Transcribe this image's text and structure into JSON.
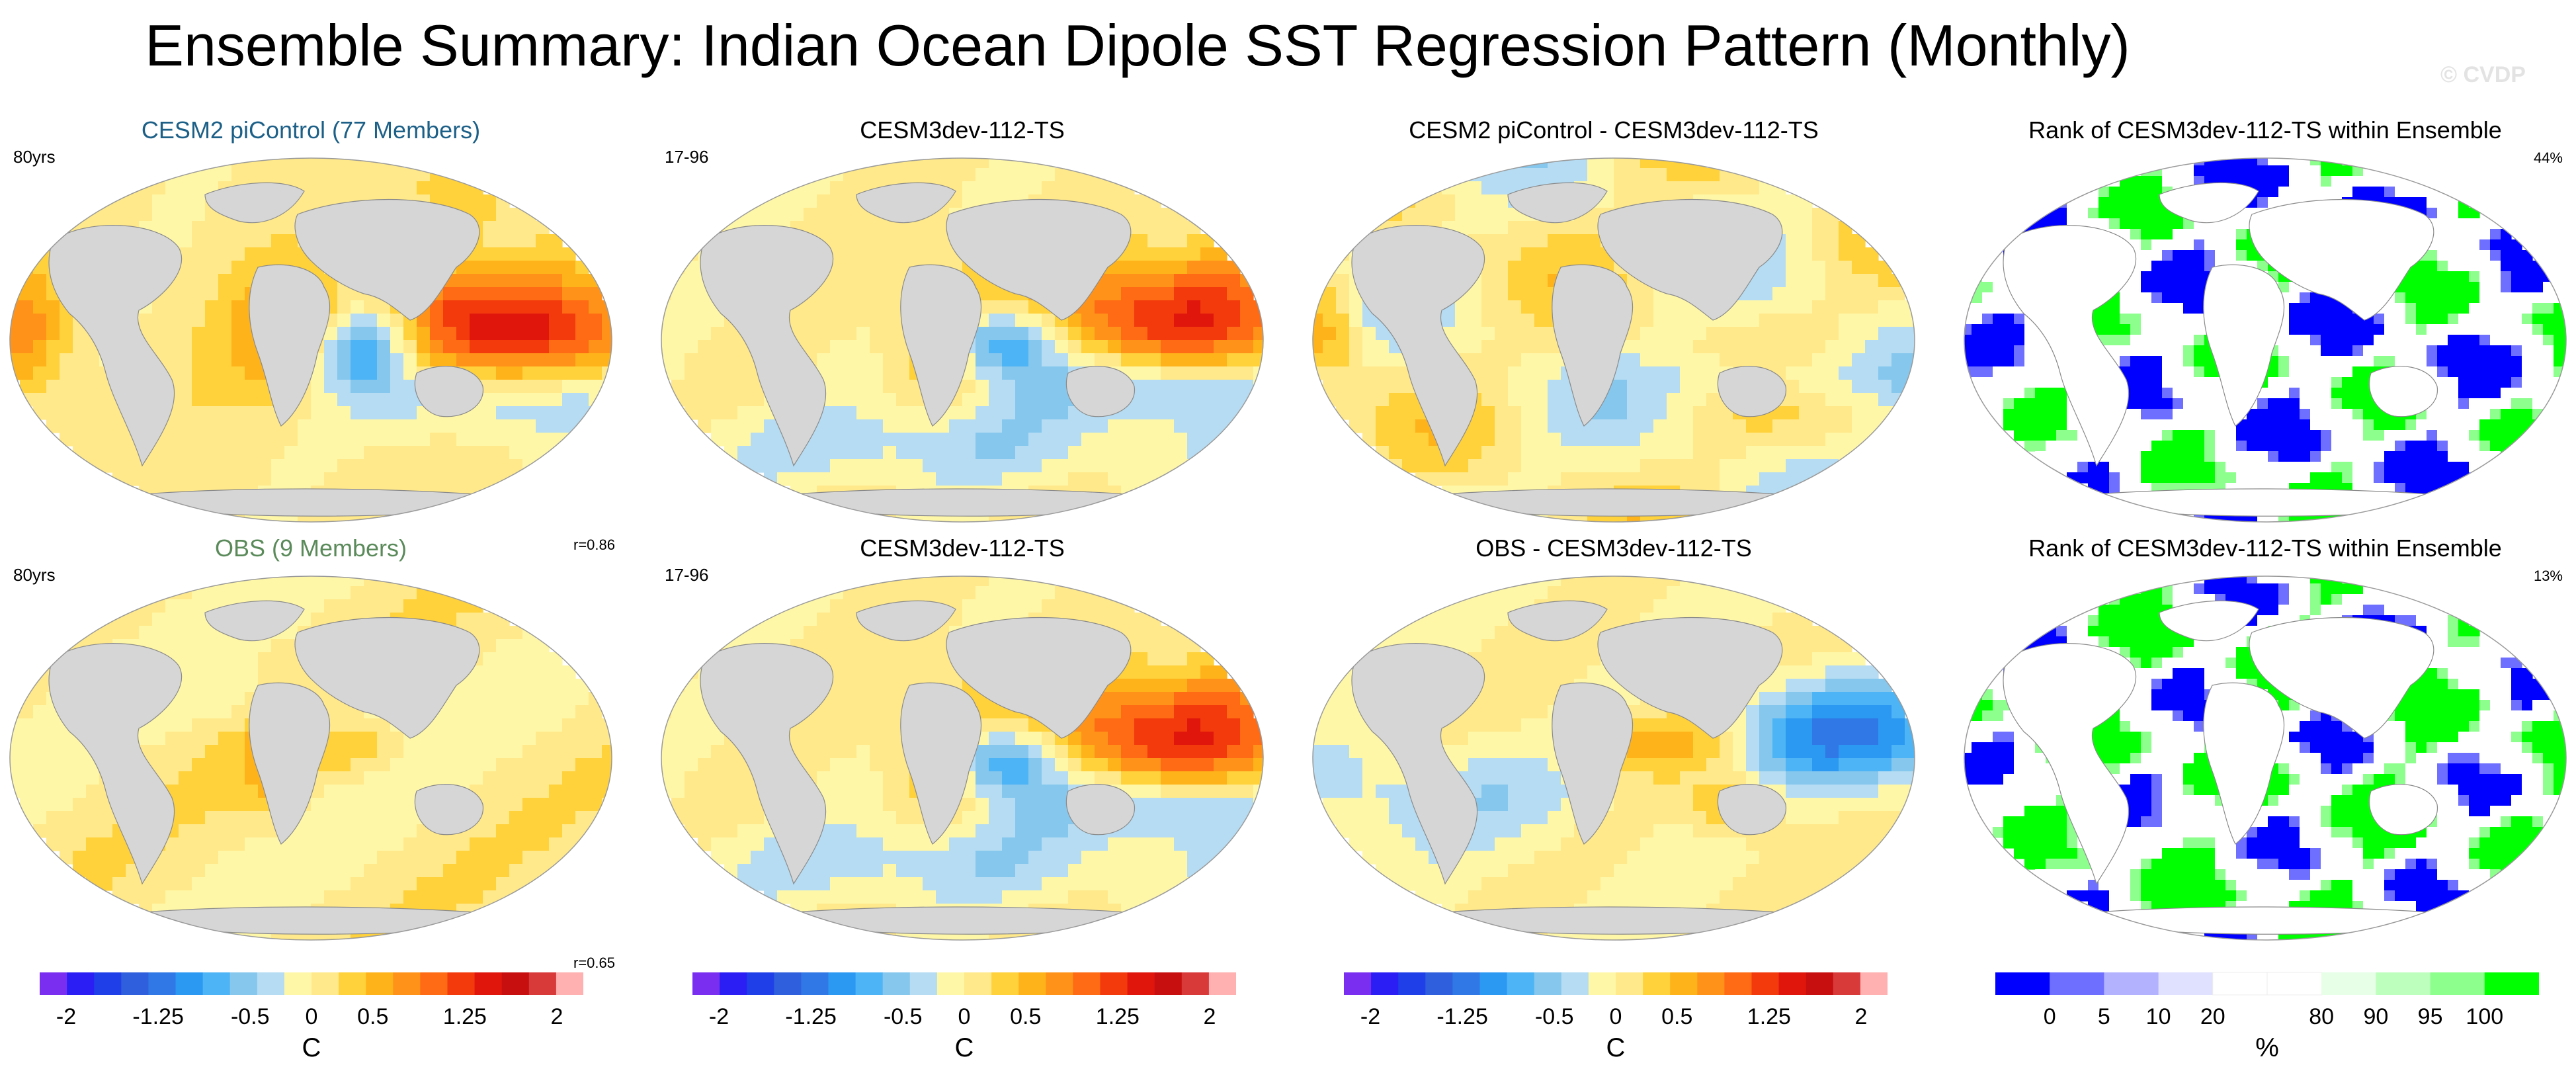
{
  "title": "Ensemble Summary: Indian Ocean Dipole SST Regression Pattern (Monthly)",
  "watermark": "© CVDP",
  "panels": {
    "r1c1": {
      "title": "CESM2 piControl (77 Members)",
      "left_label": "80yrs",
      "corr": "r=0.86"
    },
    "r1c2": {
      "title": "CESM3dev-112-TS",
      "left_label": "17-96"
    },
    "r1c3": {
      "title": "CESM2 piControl - CESM3dev-112-TS"
    },
    "r1c4": {
      "title": "Rank of CESM3dev-112-TS within Ensemble",
      "right_label": "44%"
    },
    "r2c1": {
      "title": "OBS (9 Members)",
      "left_label": "80yrs",
      "corr": "r=0.65"
    },
    "r2c2": {
      "title": "CESM3dev-112-TS",
      "left_label": "17-96"
    },
    "r2c3": {
      "title": "OBS - CESM3dev-112-TS"
    },
    "r2c4": {
      "title": "Rank of CESM3dev-112-TS within Ensemble",
      "right_label": "13%"
    }
  },
  "colors": {
    "land": "#d6d6d6",
    "sst_palette": [
      "#7a2ff0",
      "#2a1ef5",
      "#1f3fe8",
      "#2f5fdc",
      "#2f78e6",
      "#2b98f2",
      "#4db4f5",
      "#86c7ee",
      "#b5dcf2",
      "#fff7a8",
      "#ffe98a",
      "#ffd13a",
      "#ffb31a",
      "#ff931a",
      "#ff6a14",
      "#f23a0d",
      "#e0160d",
      "#c70f0f",
      "#d83a3a",
      "#ffb0b0"
    ],
    "rank_palette": [
      "#0000ff",
      "#6f6fff",
      "#b2b2ff",
      "#e0e0ff",
      "#ffffff",
      "#ffffff",
      "#e6ffe6",
      "#bdffbd",
      "#8cff8c",
      "#00ff00"
    ]
  },
  "colorbar_sst": {
    "ticks": [
      {
        "label": "-2",
        "value": -2
      },
      {
        "label": "-1.25",
        "value": -1.25
      },
      {
        "label": "-0.5",
        "value": -0.5
      },
      {
        "label": "0",
        "value": 0
      },
      {
        "label": "0.5",
        "value": 0.5
      },
      {
        "label": "1.25",
        "value": 1.25
      },
      {
        "label": "2",
        "value": 2
      }
    ],
    "unit": "C"
  },
  "colorbar_rank": {
    "ticks": [
      "0",
      "5",
      "10",
      "20",
      "80",
      "90",
      "95",
      "100"
    ],
    "unit": "%"
  },
  "chart_data": {
    "type": "heatmap",
    "title": "Ensemble Summary: Indian Ocean Dipole SST Regression Pattern (Monthly)",
    "panels": [
      {
        "row": 1,
        "col": 1,
        "title": "CESM2 piControl (77 Members)",
        "pattern": "piControl",
        "units": "C",
        "range": [
          -2,
          2
        ]
      },
      {
        "row": 1,
        "col": 2,
        "title": "CESM3dev-112-TS",
        "pattern": "model",
        "units": "C",
        "range": [
          -2,
          2
        ]
      },
      {
        "row": 1,
        "col": 3,
        "title": "CESM2 piControl - CESM3dev-112-TS",
        "pattern": "diff1",
        "units": "C",
        "range": [
          -2,
          2
        ]
      },
      {
        "row": 1,
        "col": 4,
        "title": "Rank of CESM3dev-112-TS within Ensemble",
        "pattern": "rank1",
        "units": "%",
        "range": [
          0,
          100
        ]
      },
      {
        "row": 2,
        "col": 1,
        "title": "OBS (9 Members)",
        "pattern": "obs",
        "units": "C",
        "range": [
          -2,
          2
        ]
      },
      {
        "row": 2,
        "col": 2,
        "title": "CESM3dev-112-TS",
        "pattern": "model",
        "units": "C",
        "range": [
          -2,
          2
        ]
      },
      {
        "row": 2,
        "col": 3,
        "title": "OBS - CESM3dev-112-TS",
        "pattern": "diff2",
        "units": "C",
        "range": [
          -2,
          2
        ]
      },
      {
        "row": 2,
        "col": 4,
        "title": "Rank of CESM3dev-112-TS within Ensemble",
        "pattern": "rank2",
        "units": "%",
        "range": [
          0,
          100
        ]
      }
    ]
  }
}
